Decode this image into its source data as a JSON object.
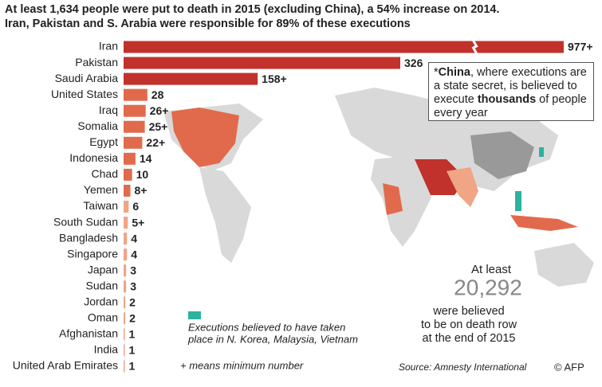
{
  "chart_data": {
    "type": "bar",
    "orientation": "horizontal",
    "title_lines": [
      "At least 1,634 people were put to death in 2015 (excluding China), a 54% increase on 2014.",
      "Iran, Pakistan and S. Arabia were responsible for 89% of these executions"
    ],
    "categories": [
      "Iran",
      "Pakistan",
      "Saudi Arabia",
      "United States",
      "Iraq",
      "Somalia",
      "Egypt",
      "Indonesia",
      "Chad",
      "Yemen",
      "Taiwan",
      "South Sudan",
      "Bangladesh",
      "Singapore",
      "Japan",
      "Sudan",
      "Jordan",
      "Oman",
      "Afghanistan",
      "India",
      "United Arab Emirates"
    ],
    "values": [
      977,
      326,
      158,
      28,
      26,
      25,
      22,
      14,
      10,
      8,
      6,
      5,
      4,
      4,
      3,
      3,
      2,
      2,
      1,
      1,
      1
    ],
    "value_labels": [
      "977+",
      "326",
      "158+",
      "28",
      "26+",
      "25+",
      "22+",
      "14",
      "10",
      "8+",
      "6",
      "5+",
      "4",
      "4",
      "3",
      "3",
      "2",
      "2",
      "1",
      "1",
      "1"
    ],
    "colors": [
      "#c1322c",
      "#c1322c",
      "#c1322c",
      "#e26a4c",
      "#e26a4c",
      "#e26a4c",
      "#e26a4c",
      "#e26a4c",
      "#e26a4c",
      "#e26a4c",
      "#f0a585",
      "#f0a585",
      "#f0a585",
      "#f0a585",
      "#f0a585",
      "#f0a585",
      "#f0a585",
      "#f0a585",
      "#f0a585",
      "#f0a585",
      "#f0a585"
    ],
    "xlim": [
      0,
      326
    ],
    "china_note": [
      "*",
      "China",
      ", where executions are a state secret, is believed to execute ",
      "thousands",
      " of people every year"
    ],
    "death_row": {
      "intro": "At least",
      "number": "20,292",
      "lines": [
        "were believed",
        "to be on death row",
        "at the end of 2015"
      ]
    },
    "legend_note": {
      "color": "#2bb3a0",
      "lines": [
        "Executions believed to have taken",
        "place in N. Korea, Malaysia, Vietnam"
      ]
    },
    "plus_note": "+ means minimum number",
    "source": "Source: Amnesty International",
    "credit": "© AFP"
  }
}
